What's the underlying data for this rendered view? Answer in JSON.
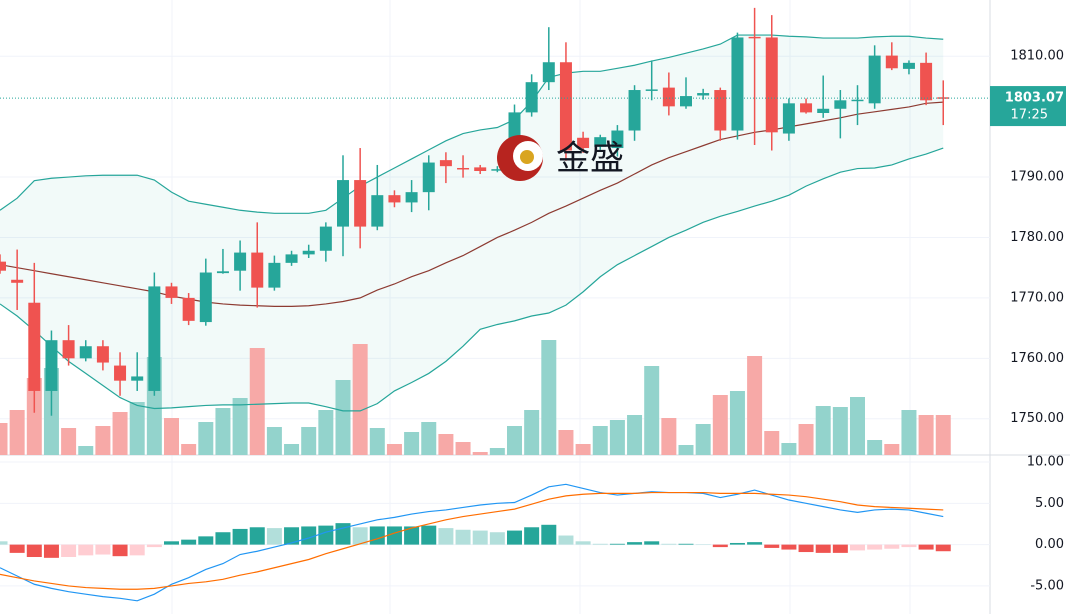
{
  "chart_data": [
    {
      "type": "candlestick",
      "ylim": [
        1744,
        1819.3
      ],
      "yticks": [
        {
          "value": 1750,
          "label": "1750.00"
        },
        {
          "value": 1760,
          "label": "1760.00"
        },
        {
          "value": 1770,
          "label": "1770.00"
        },
        {
          "value": 1780,
          "label": "1780.00"
        },
        {
          "value": 1790,
          "label": "1790.00"
        },
        {
          "value": 1810,
          "label": "1810.00"
        }
      ],
      "up_color": "#26a69a",
      "down_color": "#ef5350",
      "volume_up_color": "#93d3cc",
      "volume_down_color": "#f7a9a7",
      "watermark": "金盛",
      "last_price": {
        "value": 1803.07,
        "label": "1803.07"
      },
      "countdown": "17:25",
      "open": [
        1776,
        1773,
        1769.2,
        1754.6,
        1763,
        1760,
        1762,
        1758.8,
        1756.3,
        1754.6,
        1771.9,
        1770,
        1766,
        1774.1,
        1774.5,
        1777.5,
        1771.7,
        1775.8,
        1777.2,
        1777.8,
        1781.8,
        1789.5,
        1781.8,
        1787,
        1785.8,
        1787.5,
        1792.8,
        1791.5,
        1791.6,
        1791.1,
        1795.7,
        1800.7,
        1805.7,
        1809,
        1796.5,
        1795,
        1794.8,
        1797.7,
        1804.4,
        1804.8,
        1801.7,
        1803.5,
        1804.4,
        1797.7,
        1813.2,
        1813.1,
        1797.2,
        1802.2,
        1800.6,
        1801.3,
        1802.7,
        1802.2,
        1810.1,
        1807.9,
        1808.9,
        1803.2
      ],
      "high": [
        1777.2,
        1778,
        1775.8,
        1764.6,
        1765.5,
        1763,
        1763,
        1761,
        1761,
        1774.2,
        1772.5,
        1770.8,
        1776.5,
        1778.1,
        1779.5,
        1782.5,
        1777,
        1777.8,
        1778.8,
        1782.5,
        1793.6,
        1794.8,
        1792,
        1787.8,
        1789.5,
        1793.6,
        1794.1,
        1793.6,
        1792,
        1791.8,
        1802,
        1807,
        1814.8,
        1812.3,
        1797.5,
        1797,
        1798.6,
        1805.2,
        1809.3,
        1807.3,
        1806.5,
        1804.6,
        1804.8,
        1813.9,
        1818,
        1816.8,
        1803,
        1803,
        1806.8,
        1804.4,
        1805.2,
        1811.8,
        1812.3,
        1809.3,
        1810.6,
        1806
      ],
      "low": [
        1774,
        1768,
        1751,
        1750.5,
        1758.8,
        1759.5,
        1758,
        1753.8,
        1754.6,
        1753.8,
        1769,
        1765.5,
        1765.4,
        1774,
        1771.2,
        1768.4,
        1771.2,
        1775.3,
        1776.6,
        1776,
        1776.9,
        1778.2,
        1781.2,
        1785,
        1784.2,
        1784.5,
        1789,
        1789.9,
        1790.5,
        1790.8,
        1794.5,
        1800,
        1804.4,
        1792.7,
        1794,
        1794.5,
        1793.4,
        1796,
        1802.7,
        1800.2,
        1801.3,
        1802.8,
        1796,
        1796.2,
        1795.3,
        1794.4,
        1796,
        1800.5,
        1799.8,
        1796.4,
        1798.6,
        1801.3,
        1807.7,
        1807,
        1801.9,
        1798.6
      ],
      "close": [
        1774.5,
        1772.5,
        1754.6,
        1763,
        1760,
        1762,
        1759.3,
        1756.3,
        1757,
        1771.9,
        1770,
        1766.2,
        1774.2,
        1774.4,
        1777.5,
        1771.7,
        1775.8,
        1777.2,
        1777.8,
        1781.8,
        1789.5,
        1781.8,
        1787,
        1785.8,
        1787.5,
        1792.4,
        1791.8,
        1791.4,
        1791,
        1791.3,
        1800.7,
        1805.7,
        1809,
        1794.4,
        1794.8,
        1796.6,
        1797.7,
        1804.4,
        1804.5,
        1801.7,
        1803.4,
        1803.9,
        1797.7,
        1813.1,
        1813,
        1797.4,
        1802.2,
        1800.7,
        1801.3,
        1802.7,
        1802.8,
        1810.1,
        1808,
        1808.9,
        1802.7,
        1803.07
      ],
      "volume": [
        32,
        45,
        77,
        87,
        27,
        9,
        29,
        43,
        53,
        98,
        37,
        11,
        33,
        47,
        57,
        107,
        28,
        11,
        28,
        45,
        75,
        111,
        27,
        11,
        23,
        33,
        21,
        13,
        3,
        7,
        29,
        45,
        115,
        25,
        11,
        29,
        35,
        40,
        89,
        37,
        10,
        31,
        60,
        64,
        99,
        24,
        12,
        31,
        49,
        48,
        58,
        15,
        11,
        45,
        40,
        40
      ],
      "bands": [
        {
          "color": "#26a69a",
          "values": [
            1784.5,
            1786.5,
            1789.4,
            1789.8,
            1790,
            1790.2,
            1790.3,
            1790.3,
            1790.3,
            1789.5,
            1787.5,
            1786,
            1785.5,
            1785,
            1784.5,
            1784.2,
            1784,
            1784,
            1784,
            1784.5,
            1786.5,
            1788.5,
            1790,
            1791.5,
            1793,
            1794.5,
            1796,
            1797.2,
            1797.8,
            1798.2,
            1799.5,
            1802.5,
            1806.5,
            1807.2,
            1807.5,
            1807.5,
            1808,
            1808.5,
            1809.2,
            1809.8,
            1810.5,
            1811.2,
            1812,
            1813.5,
            1813.5,
            1813.5,
            1813.3,
            1813.2,
            1813,
            1813,
            1813,
            1813.2,
            1813.3,
            1813.3,
            1813,
            1812.8
          ]
        },
        {
          "color": "#8d3b32",
          "values": [
            1775.5,
            1775,
            1774.5,
            1774,
            1773.5,
            1773,
            1772.5,
            1772,
            1771.5,
            1771,
            1770.3,
            1769.8,
            1769.3,
            1769,
            1768.8,
            1768.7,
            1768.6,
            1768.6,
            1768.7,
            1769,
            1769.4,
            1770,
            1771.3,
            1772.3,
            1773.5,
            1774.5,
            1775.8,
            1777,
            1778.5,
            1780,
            1781.2,
            1782.5,
            1784,
            1785.2,
            1786.5,
            1787.8,
            1789,
            1790.5,
            1792,
            1793.2,
            1794.2,
            1795.2,
            1796.2,
            1796.8,
            1797.4,
            1797.8,
            1798.3,
            1798.8,
            1799.3,
            1799.8,
            1800.4,
            1800.8,
            1801.2,
            1801.6,
            1802.2,
            1802.4
          ]
        },
        {
          "color": "#26a69a",
          "values": [
            1769,
            1767,
            1764.6,
            1762,
            1759.5,
            1757.5,
            1755.5,
            1753.5,
            1752.2,
            1751.7,
            1751.8,
            1752,
            1752.2,
            1752.3,
            1752.3,
            1752.4,
            1752.5,
            1752.6,
            1752.6,
            1752,
            1751.3,
            1751.3,
            1752.5,
            1754.6,
            1756,
            1757.5,
            1759.5,
            1762,
            1764.8,
            1765.6,
            1766.2,
            1767,
            1767.5,
            1768.8,
            1771,
            1773.5,
            1775.5,
            1777,
            1778.5,
            1780,
            1781.2,
            1782.5,
            1783.5,
            1784.3,
            1785.2,
            1786,
            1787,
            1788.5,
            1789.7,
            1790.8,
            1791.4,
            1791.5,
            1792,
            1793,
            1793.8,
            1794.8
          ]
        }
      ]
    },
    {
      "type": "macd",
      "ylim": [
        -8.4,
        10.85
      ],
      "yticks": [
        {
          "value": 10,
          "label": "10.00"
        },
        {
          "value": 5,
          "label": "5.00"
        },
        {
          "value": 0,
          "label": "0.00"
        },
        {
          "value": -5,
          "label": "-5.00"
        }
      ],
      "hist_colors": [
        "#26a69a",
        "#b2dfdb",
        "#ef5350",
        "#ffcdd2"
      ],
      "histogram": [
        0.4,
        -1.0,
        -1.5,
        -1.6,
        -1.5,
        -1.3,
        -1.2,
        -1.4,
        -1.3,
        -0.3,
        0.4,
        0.6,
        1.0,
        1.5,
        1.9,
        2.1,
        2.0,
        2.1,
        2.2,
        2.3,
        2.6,
        2.1,
        2.2,
        2.2,
        2.2,
        2.3,
        2.0,
        1.8,
        1.7,
        1.5,
        1.7,
        2.1,
        2.4,
        1.1,
        0.4,
        0.1,
        0.1,
        0.3,
        0.4,
        0.1,
        0.1,
        0.05,
        -0.3,
        0.2,
        0.3,
        -0.4,
        -0.6,
        -0.9,
        -1.0,
        -1.0,
        -0.7,
        -0.6,
        -0.5,
        -0.3,
        -0.6,
        -0.8
      ],
      "series": [
        {
          "color": "#2196f3",
          "values": [
            -2.8,
            -3.8,
            -4.8,
            -5.3,
            -5.7,
            -6.0,
            -6.3,
            -6.5,
            -6.8,
            -6.0,
            -4.8,
            -4.0,
            -3.0,
            -2.3,
            -1.2,
            -0.8,
            -0.3,
            0.2,
            0.8,
            1.5,
            2.0,
            2.5,
            3.0,
            3.3,
            3.7,
            4.0,
            4.2,
            4.5,
            4.8,
            5.0,
            5.1,
            6.0,
            7.0,
            7.3,
            6.8,
            6.3,
            6.0,
            6.2,
            6.4,
            6.3,
            6.3,
            6.2,
            5.7,
            6.1,
            6.6,
            6.0,
            5.4,
            5.0,
            4.6,
            4.2,
            3.9,
            4.2,
            4.3,
            4.2,
            3.8,
            3.4
          ]
        },
        {
          "color": "#ff6d00",
          "values": [
            -3.6,
            -4.0,
            -4.4,
            -4.7,
            -5.0,
            -5.2,
            -5.3,
            -5.4,
            -5.4,
            -5.3,
            -5.0,
            -4.7,
            -4.5,
            -4.2,
            -3.7,
            -3.3,
            -2.8,
            -2.3,
            -1.8,
            -1.1,
            -0.5,
            0.1,
            0.7,
            1.4,
            2.0,
            2.5,
            3.0,
            3.4,
            3.7,
            4.0,
            4.3,
            4.9,
            5.5,
            5.9,
            6.1,
            6.2,
            6.2,
            6.2,
            6.3,
            6.3,
            6.3,
            6.3,
            6.2,
            6.2,
            6.2,
            6.1,
            6.0,
            5.8,
            5.5,
            5.2,
            4.8,
            4.6,
            4.5,
            4.4,
            4.3,
            4.2
          ]
        }
      ]
    }
  ]
}
